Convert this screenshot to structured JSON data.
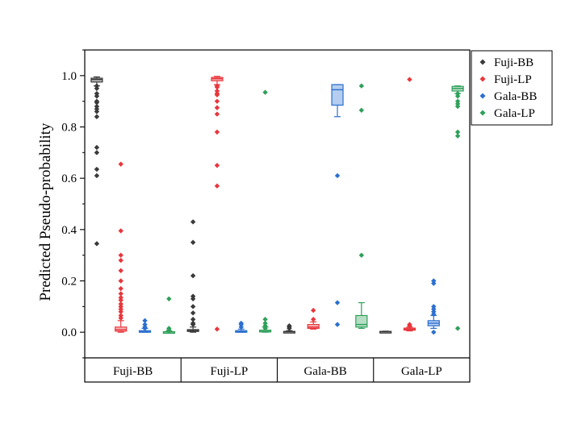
{
  "chart_data": {
    "type": "box",
    "ylabel": "Predicted Pseudo-probability",
    "ylim": [
      -0.1,
      1.1
    ],
    "yticks": [
      0.0,
      0.2,
      0.4,
      0.6,
      0.8,
      1.0
    ],
    "ytick_labels": [
      "0.0",
      "0.2",
      "0.4",
      "0.6",
      "0.8",
      "1.0"
    ],
    "categories": [
      "Fuji-BB",
      "Fuji-LP",
      "Gala-BB",
      "Gala-LP"
    ],
    "legend_position": "top-right",
    "series": [
      {
        "name": "Fuji-BB",
        "color": "#3a3a3a",
        "boxes": [
          {
            "q1": 0.975,
            "median": 0.985,
            "q3": 0.99,
            "whisker_low": 0.96,
            "whisker_high": 0.995,
            "outliers": [
              0.96,
              0.95,
              0.93,
              0.92,
              0.9,
              0.895,
              0.88,
              0.87,
              0.86,
              0.84,
              0.72,
              0.7,
              0.635,
              0.61,
              0.345
            ]
          },
          {
            "q1": 0.003,
            "median": 0.006,
            "q3": 0.01,
            "whisker_low": 0.0,
            "whisker_high": 0.02,
            "outliers": [
              0.43,
              0.35,
              0.22,
              0.14,
              0.13,
              0.1,
              0.075,
              0.05,
              0.035,
              0.03
            ]
          },
          {
            "q1": 0.001,
            "median": 0.002,
            "q3": 0.003,
            "whisker_low": 0.0,
            "whisker_high": 0.006,
            "outliers": [
              0.025,
              0.02,
              0.015
            ]
          },
          {
            "q1": 0.001,
            "median": 0.002,
            "q3": 0.003,
            "whisker_low": 0.0,
            "whisker_high": 0.004,
            "outliers": []
          }
        ]
      },
      {
        "name": "Fuji-LP",
        "color": "#e8373c",
        "boxes": [
          {
            "q1": 0.004,
            "median": 0.01,
            "q3": 0.02,
            "whisker_low": 0.0,
            "whisker_high": 0.045,
            "outliers": [
              0.655,
              0.395,
              0.3,
              0.28,
              0.24,
              0.2,
              0.17,
              0.15,
              0.135,
              0.125,
              0.11,
              0.1,
              0.09,
              0.08,
              0.065,
              0.055
            ]
          },
          {
            "q1": 0.98,
            "median": 0.988,
            "q3": 0.993,
            "whisker_low": 0.965,
            "whisker_high": 0.997,
            "outliers": [
              0.96,
              0.955,
              0.94,
              0.93,
              0.925,
              0.9,
              0.875,
              0.85,
              0.78,
              0.65,
              0.57,
              0.012
            ]
          },
          {
            "q1": 0.015,
            "median": 0.02,
            "q3": 0.03,
            "whisker_low": 0.012,
            "whisker_high": 0.04,
            "outliers": [
              0.085,
              0.05
            ]
          },
          {
            "q1": 0.008,
            "median": 0.012,
            "q3": 0.016,
            "whisker_low": 0.005,
            "whisker_high": 0.02,
            "outliers": [
              0.985,
              0.03,
              0.025
            ]
          }
        ]
      },
      {
        "name": "Gala-BB",
        "color": "#2b6fcf",
        "boxes": [
          {
            "q1": 0.0,
            "median": 0.002,
            "q3": 0.006,
            "whisker_low": 0.0,
            "whisker_high": 0.015,
            "outliers": [
              0.045,
              0.03,
              0.02,
              0.015
            ]
          },
          {
            "q1": 0.001,
            "median": 0.003,
            "q3": 0.006,
            "whisker_low": 0.0,
            "whisker_high": 0.012,
            "outliers": [
              0.035,
              0.03,
              0.02
            ]
          },
          {
            "q1": 0.885,
            "median": 0.945,
            "q3": 0.965,
            "whisker_low": 0.84,
            "whisker_high": 0.965,
            "outliers": [
              0.61,
              0.115,
              0.03
            ]
          },
          {
            "q1": 0.025,
            "median": 0.035,
            "q3": 0.045,
            "whisker_low": 0.015,
            "whisker_high": 0.065,
            "outliers": [
              0.2,
              0.19,
              0.1,
              0.09,
              0.08,
              0.07,
              0.0
            ]
          }
        ]
      },
      {
        "name": "Gala-LP",
        "color": "#2fa05a",
        "boxes": [
          {
            "q1": 0.0,
            "median": 0.001,
            "q3": 0.002,
            "whisker_low": 0.0,
            "whisker_high": 0.005,
            "outliers": [
              0.13,
              0.015,
              0.01,
              0.005
            ]
          },
          {
            "q1": 0.001,
            "median": 0.003,
            "q3": 0.008,
            "whisker_low": 0.0,
            "whisker_high": 0.02,
            "outliers": [
              0.935,
              0.05,
              0.035,
              0.025,
              0.015
            ]
          },
          {
            "q1": 0.02,
            "median": 0.03,
            "q3": 0.065,
            "whisker_low": 0.015,
            "whisker_high": 0.115,
            "outliers": [
              0.96,
              0.865,
              0.3
            ]
          },
          {
            "q1": 0.94,
            "median": 0.95,
            "q3": 0.958,
            "whisker_low": 0.93,
            "whisker_high": 0.96,
            "outliers": [
              0.93,
              0.92,
              0.9,
              0.89,
              0.88,
              0.78,
              0.765,
              0.015
            ]
          }
        ]
      }
    ]
  }
}
